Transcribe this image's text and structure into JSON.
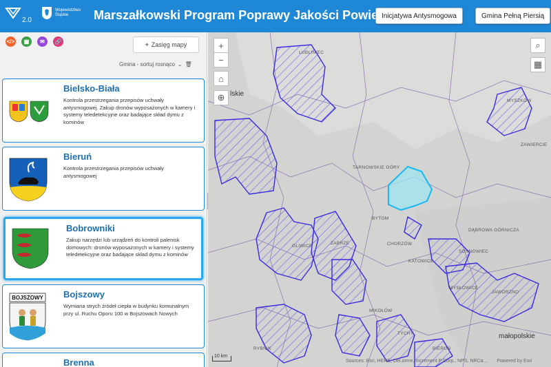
{
  "header": {
    "version": "2.0",
    "woj_label": "Województwo Śląskie",
    "title": "Marszałkowski Program Poprawy Jakości Powietrza",
    "btn_initiative": "Inicjatywa Antysmogowa",
    "btn_gmina": "Gmina Pełną Piersią",
    "colors": {
      "header_bg": "#1e88d6"
    }
  },
  "sidebar": {
    "tools": [
      {
        "icon": "code-icon",
        "color": "#f0642c"
      },
      {
        "icon": "qr-icon",
        "color": "#3ba046"
      },
      {
        "icon": "mail-icon",
        "color": "#9747d8"
      },
      {
        "icon": "link-icon",
        "color": "#e03a78"
      }
    ],
    "zasieg_label": "Zasięg mapy",
    "sort_label": "Gmina - sortuj rosnąco",
    "cards": [
      {
        "name": "Bielsko-Biała",
        "desc": "Kontrola przestrzegania przepisów uchwały antysmogowej. Zakup dronów wyposażonych w kamery i systemy teledetekcyjne oraz badające skład dymu z kominów"
      },
      {
        "name": "Bieruń",
        "desc": "Kontrola przestrzegania przepisów uchwały antysmogowej"
      },
      {
        "name": "Bobrowniki",
        "desc": "Zakup narzędzi lub urządzeń do kontroli palenisk domowych: dronów wyposażonych w kamery i systemy teledetekcyjne oraz badające skład dymu z kominów"
      },
      {
        "name": "Bojszowy",
        "desc": "Wymiana strych źródeł ciepła w budynku komunalnym przy ul. Ruchu Oporu 100 w Bojszowach Nowych"
      },
      {
        "name": "Brenna",
        "desc": ""
      }
    ],
    "bojszowy_crest_text": "BOJSZOWY"
  },
  "map": {
    "labels": [
      "LUBLINIEC",
      "MYSZKÓW",
      "ZAWIERCIE",
      "TARNOWSKIE GÓRY",
      "BYTOM",
      "DĄBROWA GÓRNICZA",
      "GLIWICE",
      "ZABRZE",
      "CHORZÓW",
      "SOSNOWIEC",
      "KATOWICE",
      "MYSŁOWICE",
      "JAWORZNO",
      "MIKOŁÓW",
      "TYCHY",
      "RYBNIK",
      "BIERUŃ"
    ],
    "region_left": "lskie",
    "region_right": "małopolskie",
    "scale": "10 km",
    "attribution": "Sources: Esri, HERE, DeLorme, Increment P Corp., NPS, NRCa...",
    "powered": "Powered by Esri"
  }
}
